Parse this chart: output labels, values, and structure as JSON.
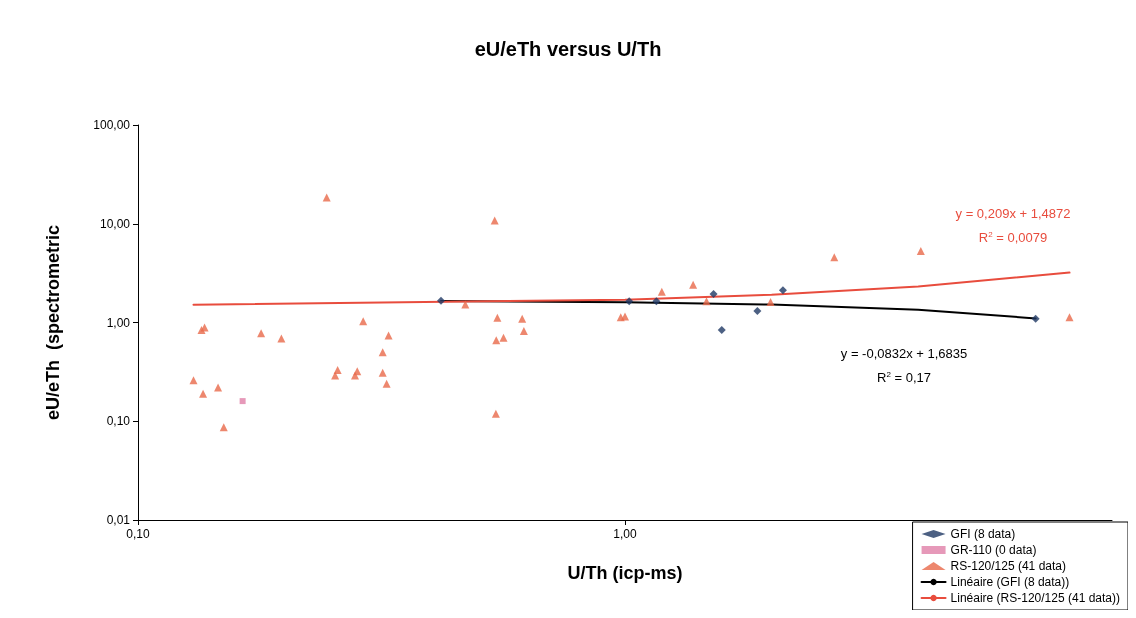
{
  "chart_data": {
    "type": "scatter",
    "title": "eU/eTh versus U/Th",
    "xlabel": "U/Th (icp-ms)",
    "ylabel": "eU/eTh  (spectrometric",
    "log": "xy",
    "grid": false,
    "legend": "bottom right",
    "xlim": [
      0.1,
      10
    ],
    "xticks": [
      {
        "value": 0.1,
        "label": "0,10"
      },
      {
        "value": 1,
        "label": "1,00"
      }
    ],
    "ylim": [
      0.01,
      100
    ],
    "yticks": [
      {
        "value": 0.01,
        "label": "0,01"
      },
      {
        "value": 0.1,
        "label": "0,10"
      },
      {
        "value": 1,
        "label": "1,00"
      },
      {
        "value": 10,
        "label": "10,00"
      },
      {
        "value": 100,
        "label": "100,00"
      }
    ],
    "series": [
      {
        "name": "GFI (8 data)",
        "marker": "diamond",
        "color": "#1f3864",
        "x": [
          0.419,
          1.02,
          1.16,
          1.52,
          1.58,
          1.87,
          2.11,
          6.97
        ],
        "values": [
          1.66,
          1.64,
          1.64,
          1.94,
          0.84,
          1.31,
          2.12,
          1.09
        ]
      },
      {
        "name": "GR-110 (0 data)",
        "marker": "square",
        "color": "#e07fa8",
        "x": [
          0.164
        ],
        "values": [
          0.16
        ]
      },
      {
        "name": "RS-120/125 (41 data)",
        "marker": "triangle",
        "color": "#e8694a",
        "x": [
          0.244,
          0.135,
          0.137,
          0.179,
          0.197,
          0.13,
          0.136,
          0.146,
          0.15,
          0.29,
          0.327,
          0.318,
          0.257,
          0.254,
          0.282,
          0.279,
          0.318,
          0.324,
          0.54,
          0.47,
          0.547,
          0.615,
          0.62,
          0.544,
          0.563,
          0.543,
          0.98,
          1.0,
          1.19,
          1.38,
          1.47,
          1.99,
          2.69,
          4.05,
          8.18
        ],
        "values": [
          18.4,
          0.84,
          0.89,
          0.78,
          0.69,
          0.26,
          0.19,
          0.22,
          0.087,
          1.03,
          0.74,
          0.5,
          0.33,
          0.29,
          0.32,
          0.29,
          0.31,
          0.24,
          10.8,
          1.52,
          1.12,
          1.09,
          0.82,
          0.66,
          0.7,
          0.119,
          1.13,
          1.15,
          2.05,
          2.41,
          1.64,
          1.61,
          4.57,
          5.31,
          1.13
        ]
      },
      {
        "name": "Linéaire (GFI (8 data))",
        "type": "line",
        "marker": "none",
        "color": "#000000",
        "x": [
          0.419,
          1,
          2,
          4,
          6.97
        ],
        "values": [
          1.65,
          1.6,
          1.52,
          1.35,
          1.1
        ]
      },
      {
        "name": "Linéaire (RS-120/125 (41 data))",
        "type": "line",
        "marker": "none",
        "color": "#e84c3d",
        "x": [
          0.13,
          1,
          2,
          4,
          8.18
        ],
        "values": [
          1.51,
          1.7,
          1.91,
          2.32,
          3.2
        ]
      }
    ],
    "annotations": [
      "y = 0,209x + 1,4872",
      "R$^{2}$ = 0,0079",
      "y = -0,0832x + 1,6835",
      "R$^{2}$ = 0,17"
    ]
  }
}
